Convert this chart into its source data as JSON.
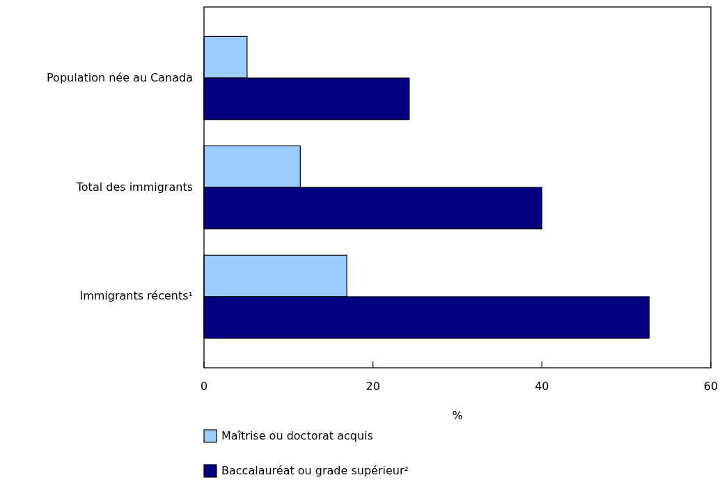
{
  "chart_data": {
    "type": "bar",
    "orientation": "horizontal",
    "xlabel": "%",
    "categories": [
      "Population née au Canada",
      "Total des immigrants",
      "Immigrants récents¹"
    ],
    "series": [
      {
        "name": "Maîtrise ou doctorat acquis",
        "color": "#99ccff",
        "values": [
          5.1,
          11.4,
          16.9
        ]
      },
      {
        "name": "Baccalauréat ou grade supérieur²",
        "color": "#000080",
        "values": [
          24.3,
          40.0,
          52.7
        ]
      }
    ],
    "xlim": [
      0,
      60
    ],
    "xticks": [
      0,
      20,
      40,
      60
    ],
    "grid": false,
    "legend": "bottom"
  }
}
